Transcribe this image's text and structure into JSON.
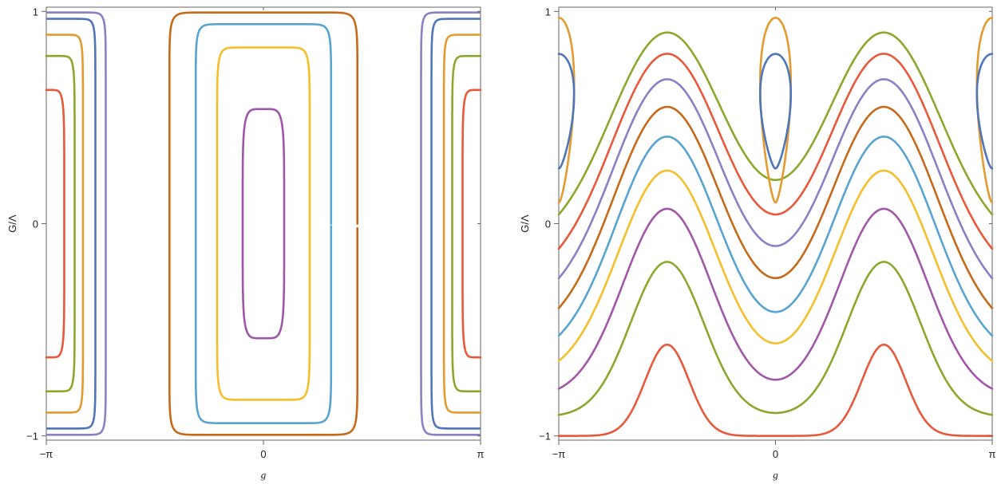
{
  "chart_data": [
    {
      "type": "line",
      "title": "",
      "xlabel": "g",
      "ylabel": "G/Λ",
      "xlim": [
        -3.14159,
        3.14159
      ],
      "ylim": [
        -1.02,
        1.02
      ],
      "x_ticks": [
        {
          "value": -3.14159,
          "label": "−π"
        },
        {
          "value": 0,
          "label": "0"
        },
        {
          "value": 3.14159,
          "label": "π"
        }
      ],
      "y_ticks": [
        {
          "value": -1,
          "label": "−1"
        },
        {
          "value": 0,
          "label": "0"
        },
        {
          "value": 1,
          "label": "1"
        }
      ],
      "grid": false,
      "series": [
        {
          "color": "#e8583a",
          "shape": "edge",
          "extent": 0.63,
          "reach": 0.26
        },
        {
          "color": "#8ba82c",
          "shape": "edge",
          "extent": 0.79,
          "reach": 0.41
        },
        {
          "color": "#e39b2f",
          "shape": "edge",
          "extent": 0.89,
          "reach": 0.53
        },
        {
          "color": "#4f76b8",
          "shape": "edge",
          "extent": 0.965,
          "reach": 0.71
        },
        {
          "color": "#8c7fc4",
          "shape": "edge",
          "extent": 0.995,
          "reach": 0.86
        },
        {
          "color": "#9e57a8",
          "shape": "center",
          "extent": 0.54,
          "reach": 0.3
        },
        {
          "color": "#f5be2b",
          "shape": "center",
          "extent": 0.83,
          "reach": 0.67
        },
        {
          "color": "#58a4d1",
          "shape": "center",
          "extent": 0.94,
          "reach": 0.98
        },
        {
          "color": "#c66a1a",
          "shape": "center",
          "extent": 0.995,
          "reach": 1.36
        }
      ]
    },
    {
      "type": "line",
      "title": "",
      "xlabel": "g",
      "ylabel": "G/Λ",
      "xlim": [
        -3.14159,
        3.14159
      ],
      "ylim": [
        -1.02,
        1.02
      ],
      "x_ticks": [
        {
          "value": -3.14159,
          "label": "−π"
        },
        {
          "value": 0,
          "label": "0"
        },
        {
          "value": 3.14159,
          "label": "π"
        }
      ],
      "y_ticks": [
        {
          "value": -1,
          "label": "−1"
        },
        {
          "value": 0,
          "label": "0"
        },
        {
          "value": 1,
          "label": "1"
        }
      ],
      "grid": false,
      "series": [
        {
          "color": "#e8583a",
          "shape": "wave",
          "base": -1.0,
          "amp": 0.43,
          "width": 0.45
        },
        {
          "color": "#8ba82c",
          "shape": "wave",
          "base": -0.91,
          "amp": 0.73,
          "width": 0.75
        },
        {
          "color": "#a157a8",
          "shape": "wave",
          "base": -0.82,
          "amp": 0.89,
          "width": 0.9
        },
        {
          "color": "#f5be2b",
          "shape": "wave",
          "base": -0.73,
          "amp": 0.98,
          "width": 1.0
        },
        {
          "color": "#58a4d1",
          "shape": "wave",
          "base": -0.64,
          "amp": 1.05,
          "width": 1.05
        },
        {
          "color": "#c66a1a",
          "shape": "wave",
          "base": -0.54,
          "amp": 1.09,
          "width": 1.1
        },
        {
          "color": "#8c7fc4",
          "shape": "wave",
          "base": -0.41,
          "amp": 1.09,
          "width": 1.12
        },
        {
          "color": "#e8583a",
          "shape": "wave",
          "base": -0.28,
          "amp": 1.08,
          "width": 1.14
        },
        {
          "color": "#8ba82c",
          "shape": "wave",
          "base": -0.12,
          "amp": 1.02,
          "width": 1.16
        },
        {
          "color": "#e39b2f",
          "shape": "island",
          "low": 0.1,
          "high": 0.97
        },
        {
          "color": "#4f76b8",
          "shape": "island",
          "low": 0.26,
          "high": 0.8
        }
      ]
    }
  ]
}
